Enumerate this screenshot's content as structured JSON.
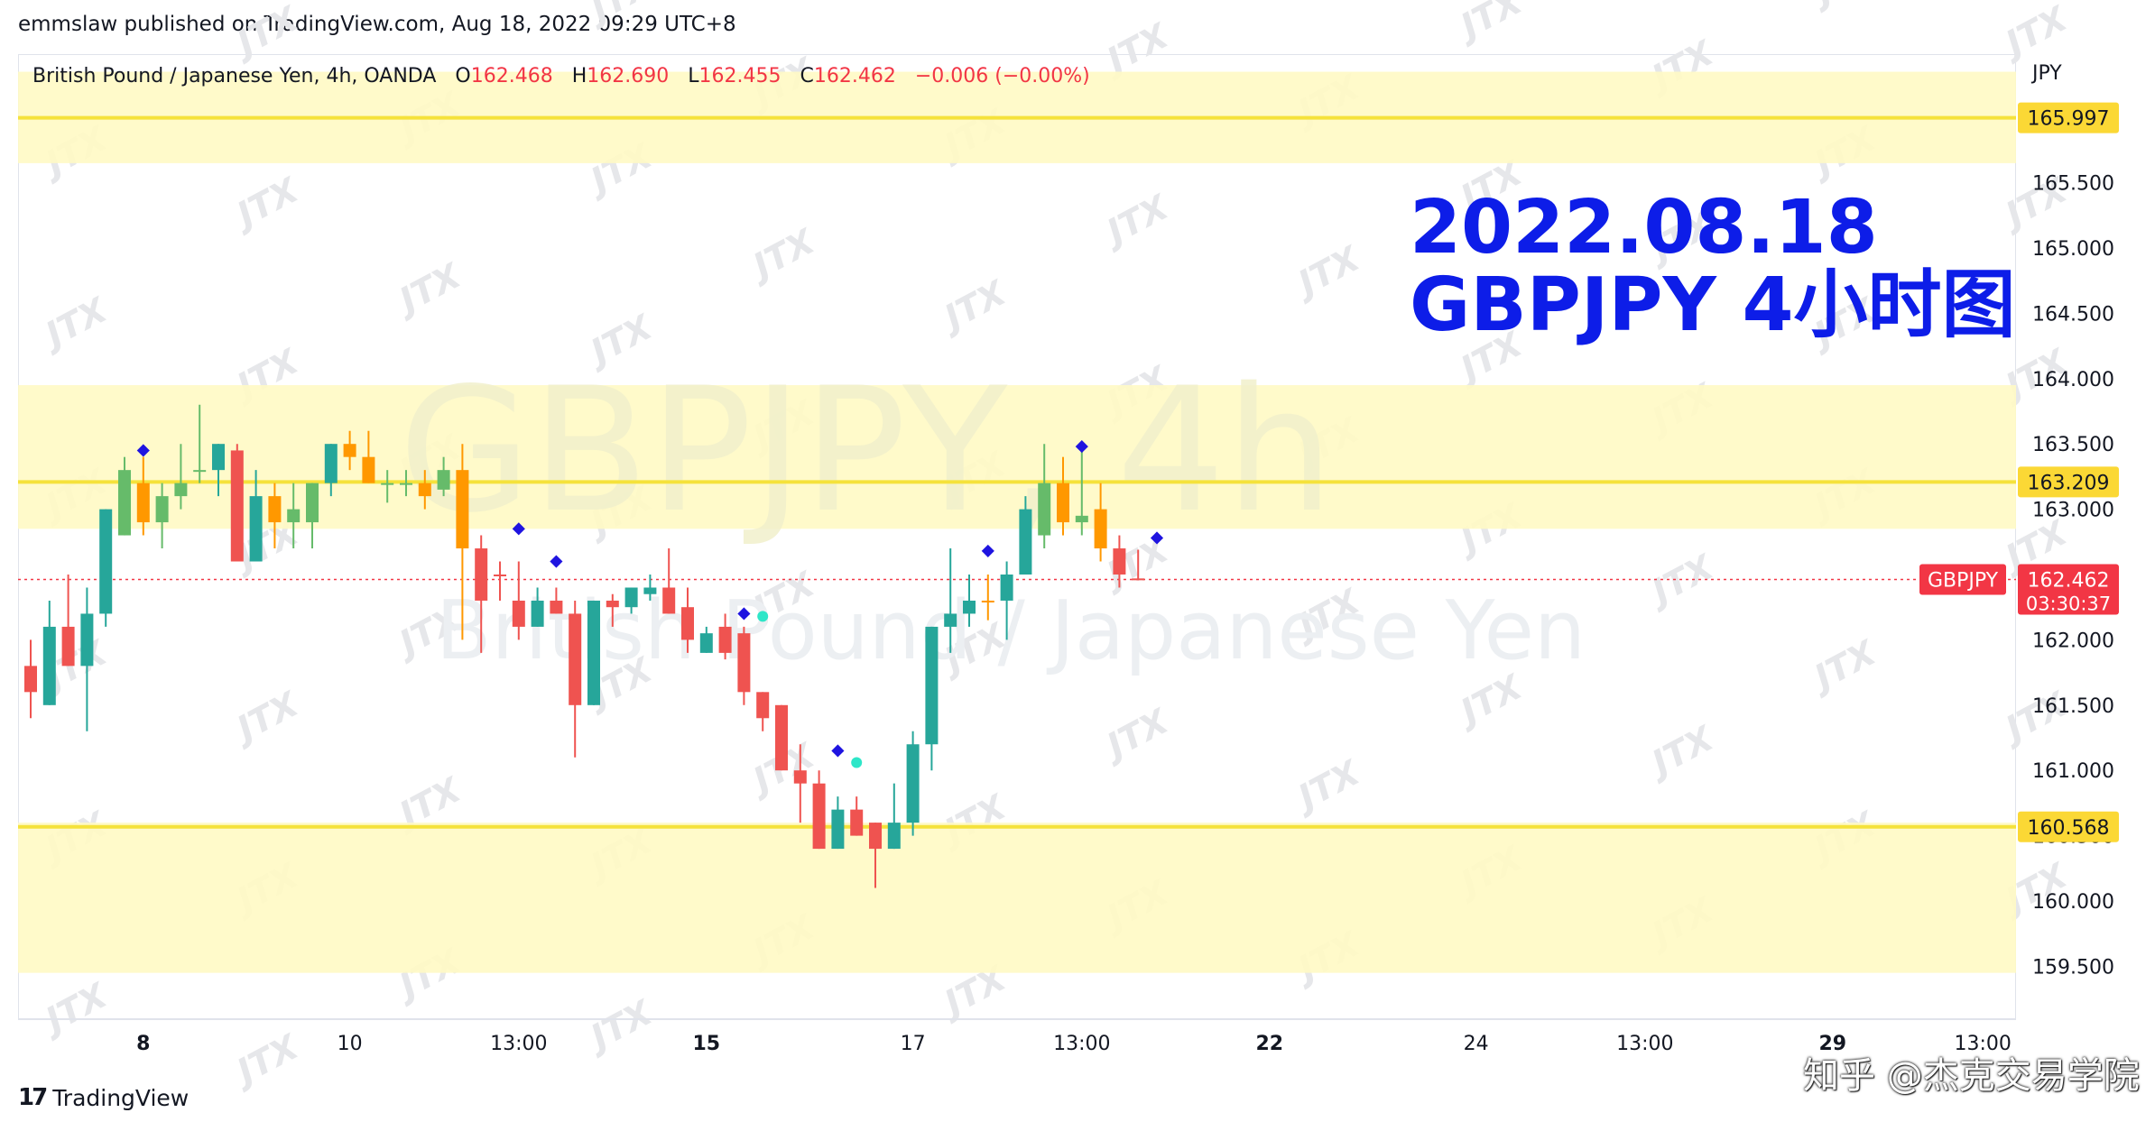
{
  "header": {
    "publisher_line": "emmslaw published on TradingView.com, Aug 18, 2022 09:29 UTC+8"
  },
  "ohlc_bar": {
    "symbol_desc": "British Pound / Japanese Yen, 4h, OANDA",
    "open_label": "O",
    "open": "162.468",
    "high_label": "H",
    "high": "162.690",
    "low_label": "L",
    "low": "162.455",
    "close_label": "C",
    "close": "162.462",
    "change": "−0.006 (−0.00%)"
  },
  "watermark": {
    "line1": "GBPJPY, 4h",
    "line2": "British Pound / Japanese Yen",
    "brand": "JTX"
  },
  "annotation": {
    "date": "2022.08.18",
    "subtitle": "GBPJPY 4小时图"
  },
  "price_axis": {
    "currency": "JPY",
    "current_symbol": "GBPJPY",
    "current_price": "162.462",
    "countdown": "03:30:37"
  },
  "footer": {
    "logo_mark": "17",
    "logo_text": "TradingView",
    "credit": "知乎 @杰克交易学院"
  },
  "colors": {
    "bull": "#26a69a",
    "bear": "#ef5350",
    "bull_light": "#66bb6a",
    "bear_light": "#ff9800",
    "zone_fill": "#fff9c4",
    "level_line": "#f5e23b",
    "level_label_bg": "#fbd835",
    "annotation": "#0d1de8",
    "signal_blue": "#1f14e0",
    "signal_aqua": "#2ee6c8"
  },
  "chart_data": {
    "type": "candlestick",
    "title": "British Pound / Japanese Yen, 4h, OANDA",
    "ylabel": "JPY",
    "ylim": [
      159.3,
      166.4
    ],
    "y_ticks": [
      "159.500",
      "160.000",
      "160.500",
      "161.000",
      "161.500",
      "162.000",
      "162.500",
      "163.000",
      "163.500",
      "164.000",
      "164.500",
      "165.000",
      "165.500"
    ],
    "x_ticks": [
      {
        "label": "8",
        "bar": 6,
        "bold": true
      },
      {
        "label": "10",
        "bar": 17,
        "bold": false
      },
      {
        "label": "13:00",
        "bar": 26,
        "bold": false
      },
      {
        "label": "15",
        "bar": 36,
        "bold": true
      },
      {
        "label": "17",
        "bar": 47,
        "bold": false
      },
      {
        "label": "13:00",
        "bar": 56,
        "bold": false
      },
      {
        "label": "22",
        "bar": 66,
        "bold": true
      },
      {
        "label": "24",
        "bar": 77,
        "bold": false
      },
      {
        "label": "13:00",
        "bar": 86,
        "bold": false
      },
      {
        "label": "29",
        "bar": 96,
        "bold": true
      },
      {
        "label": "13:00",
        "bar": 104,
        "bold": false
      }
    ],
    "levels": [
      {
        "price": 165.997,
        "label": "165.997",
        "zone": [
          165.65,
          166.35
        ]
      },
      {
        "price": 163.209,
        "label": "163.209",
        "zone": [
          162.85,
          163.95
        ]
      },
      {
        "price": 160.568,
        "label": "160.568",
        "zone": [
          159.45,
          160.6
        ]
      }
    ],
    "current_price": 162.462,
    "candles": [
      {
        "o": 161.8,
        "h": 162.0,
        "l": 161.4,
        "c": 161.6,
        "kind": "bear"
      },
      {
        "o": 161.5,
        "h": 162.3,
        "l": 161.5,
        "c": 162.1,
        "kind": "bull"
      },
      {
        "o": 162.1,
        "h": 162.5,
        "l": 161.8,
        "c": 161.8,
        "kind": "bear"
      },
      {
        "o": 161.8,
        "h": 162.4,
        "l": 161.3,
        "c": 162.2,
        "kind": "bull"
      },
      {
        "o": 162.2,
        "h": 163.0,
        "l": 162.1,
        "c": 163.0,
        "kind": "bull"
      },
      {
        "o": 162.8,
        "h": 163.4,
        "l": 162.8,
        "c": 163.3,
        "kind": "bull_light"
      },
      {
        "o": 163.2,
        "h": 163.4,
        "l": 162.8,
        "c": 162.9,
        "kind": "bear_light"
      },
      {
        "o": 162.9,
        "h": 163.2,
        "l": 162.7,
        "c": 163.1,
        "kind": "bull_light"
      },
      {
        "o": 163.1,
        "h": 163.5,
        "l": 163.0,
        "c": 163.2,
        "kind": "bull_light"
      },
      {
        "o": 163.3,
        "h": 163.8,
        "l": 163.2,
        "c": 163.3,
        "kind": "bull_light"
      },
      {
        "o": 163.3,
        "h": 163.5,
        "l": 163.1,
        "c": 163.5,
        "kind": "bull"
      },
      {
        "o": 163.45,
        "h": 163.5,
        "l": 162.6,
        "c": 162.6,
        "kind": "bear"
      },
      {
        "o": 163.1,
        "h": 163.3,
        "l": 162.6,
        "c": 162.6,
        "kind": "bull"
      },
      {
        "o": 162.9,
        "h": 163.2,
        "l": 162.7,
        "c": 163.1,
        "kind": "bear_light"
      },
      {
        "o": 163.0,
        "h": 163.2,
        "l": 162.7,
        "c": 162.9,
        "kind": "bull_light"
      },
      {
        "o": 162.9,
        "h": 163.2,
        "l": 162.7,
        "c": 163.2,
        "kind": "bull_light"
      },
      {
        "o": 163.2,
        "h": 163.5,
        "l": 163.1,
        "c": 163.5,
        "kind": "bull"
      },
      {
        "o": 163.5,
        "h": 163.6,
        "l": 163.3,
        "c": 163.4,
        "kind": "bear_light"
      },
      {
        "o": 163.4,
        "h": 163.6,
        "l": 163.2,
        "c": 163.2,
        "kind": "bear_light"
      },
      {
        "o": 163.2,
        "h": 163.3,
        "l": 163.05,
        "c": 163.2,
        "kind": "bull_light"
      },
      {
        "o": 163.2,
        "h": 163.3,
        "l": 163.1,
        "c": 163.2,
        "kind": "bull_light"
      },
      {
        "o": 163.2,
        "h": 163.3,
        "l": 163.0,
        "c": 163.1,
        "kind": "bear_light"
      },
      {
        "o": 163.15,
        "h": 163.4,
        "l": 163.1,
        "c": 163.3,
        "kind": "bull_light"
      },
      {
        "o": 163.3,
        "h": 163.5,
        "l": 162.0,
        "c": 162.7,
        "kind": "bear_light"
      },
      {
        "o": 162.7,
        "h": 162.8,
        "l": 161.9,
        "c": 162.3,
        "kind": "bear"
      },
      {
        "o": 162.5,
        "h": 162.6,
        "l": 162.3,
        "c": 162.5,
        "kind": "bear"
      },
      {
        "o": 162.3,
        "h": 162.6,
        "l": 162.0,
        "c": 162.1,
        "kind": "bear"
      },
      {
        "o": 162.1,
        "h": 162.4,
        "l": 162.1,
        "c": 162.3,
        "kind": "bull"
      },
      {
        "o": 162.3,
        "h": 162.4,
        "l": 162.2,
        "c": 162.2,
        "kind": "bear"
      },
      {
        "o": 162.2,
        "h": 162.3,
        "l": 161.1,
        "c": 161.5,
        "kind": "bear"
      },
      {
        "o": 161.5,
        "h": 162.3,
        "l": 161.5,
        "c": 162.3,
        "kind": "bull"
      },
      {
        "o": 162.25,
        "h": 162.35,
        "l": 162.1,
        "c": 162.3,
        "kind": "bear"
      },
      {
        "o": 162.25,
        "h": 162.4,
        "l": 162.2,
        "c": 162.4,
        "kind": "bull"
      },
      {
        "o": 162.35,
        "h": 162.5,
        "l": 162.3,
        "c": 162.4,
        "kind": "bull"
      },
      {
        "o": 162.4,
        "h": 162.7,
        "l": 162.2,
        "c": 162.2,
        "kind": "bear"
      },
      {
        "o": 162.25,
        "h": 162.4,
        "l": 161.9,
        "c": 162.0,
        "kind": "bear"
      },
      {
        "o": 161.9,
        "h": 162.1,
        "l": 161.9,
        "c": 162.05,
        "kind": "bull"
      },
      {
        "o": 162.1,
        "h": 162.2,
        "l": 161.85,
        "c": 161.9,
        "kind": "bear"
      },
      {
        "o": 162.05,
        "h": 162.1,
        "l": 161.5,
        "c": 161.6,
        "kind": "bear"
      },
      {
        "o": 161.6,
        "h": 161.6,
        "l": 161.3,
        "c": 161.4,
        "kind": "bear"
      },
      {
        "o": 161.5,
        "h": 161.5,
        "l": 161.0,
        "c": 161.0,
        "kind": "bear"
      },
      {
        "o": 161.0,
        "h": 161.2,
        "l": 160.6,
        "c": 160.9,
        "kind": "bear"
      },
      {
        "o": 160.9,
        "h": 161.0,
        "l": 160.4,
        "c": 160.4,
        "kind": "bear"
      },
      {
        "o": 160.4,
        "h": 160.8,
        "l": 160.4,
        "c": 160.7,
        "kind": "bull"
      },
      {
        "o": 160.7,
        "h": 160.8,
        "l": 160.5,
        "c": 160.5,
        "kind": "bear"
      },
      {
        "o": 160.6,
        "h": 160.6,
        "l": 160.1,
        "c": 160.4,
        "kind": "bear"
      },
      {
        "o": 160.4,
        "h": 160.9,
        "l": 160.4,
        "c": 160.6,
        "kind": "bull"
      },
      {
        "o": 160.6,
        "h": 161.3,
        "l": 160.5,
        "c": 161.2,
        "kind": "bull"
      },
      {
        "o": 161.2,
        "h": 162.1,
        "l": 161.0,
        "c": 162.1,
        "kind": "bull"
      },
      {
        "o": 162.1,
        "h": 162.7,
        "l": 161.9,
        "c": 162.2,
        "kind": "bull"
      },
      {
        "o": 162.2,
        "h": 162.5,
        "l": 162.1,
        "c": 162.3,
        "kind": "bull"
      },
      {
        "o": 162.3,
        "h": 162.5,
        "l": 162.15,
        "c": 162.3,
        "kind": "bear_light"
      },
      {
        "o": 162.3,
        "h": 162.6,
        "l": 162.0,
        "c": 162.5,
        "kind": "bull"
      },
      {
        "o": 162.5,
        "h": 163.1,
        "l": 162.5,
        "c": 163.0,
        "kind": "bull"
      },
      {
        "o": 162.8,
        "h": 163.5,
        "l": 162.7,
        "c": 163.2,
        "kind": "bull_light"
      },
      {
        "o": 163.2,
        "h": 163.4,
        "l": 162.8,
        "c": 162.9,
        "kind": "bear_light"
      },
      {
        "o": 162.9,
        "h": 163.5,
        "l": 162.8,
        "c": 162.95,
        "kind": "bull_light"
      },
      {
        "o": 163.0,
        "h": 163.2,
        "l": 162.6,
        "c": 162.7,
        "kind": "bear_light"
      },
      {
        "o": 162.7,
        "h": 162.8,
        "l": 162.4,
        "c": 162.5,
        "kind": "bear"
      },
      {
        "o": 162.47,
        "h": 162.69,
        "l": 162.455,
        "c": 162.46,
        "kind": "bear"
      }
    ],
    "signals": [
      {
        "bar": 6,
        "price": 163.45,
        "color": "blue"
      },
      {
        "bar": 26,
        "price": 162.85,
        "color": "blue"
      },
      {
        "bar": 28,
        "price": 162.6,
        "color": "blue"
      },
      {
        "bar": 38,
        "price": 162.2,
        "color": "blue"
      },
      {
        "bar": 39,
        "price": 162.18,
        "color": "aqua"
      },
      {
        "bar": 43,
        "price": 161.15,
        "color": "blue"
      },
      {
        "bar": 44,
        "price": 161.06,
        "color": "aqua"
      },
      {
        "bar": 51,
        "price": 162.68,
        "color": "blue"
      },
      {
        "bar": 56,
        "price": 163.48,
        "color": "blue"
      },
      {
        "bar": 60,
        "price": 162.78,
        "color": "blue"
      }
    ]
  }
}
